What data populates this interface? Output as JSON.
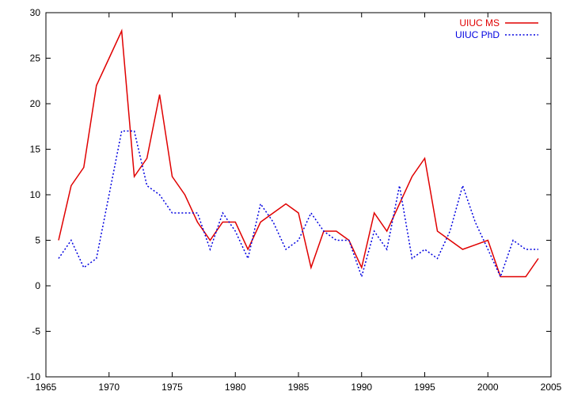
{
  "chart_data": {
    "type": "line",
    "title": "",
    "xlabel": "",
    "ylabel": "",
    "xlim": [
      1965,
      2005
    ],
    "ylim": [
      -10,
      30
    ],
    "xticks": [
      1965,
      1970,
      1975,
      1980,
      1985,
      1990,
      1995,
      2000,
      2005
    ],
    "yticks": [
      -10,
      -5,
      0,
      5,
      10,
      15,
      20,
      25,
      30
    ],
    "grid": false,
    "legend_position": "top-right",
    "x": [
      1966,
      1967,
      1968,
      1969,
      1970,
      1971,
      1972,
      1973,
      1974,
      1975,
      1976,
      1977,
      1978,
      1979,
      1980,
      1981,
      1982,
      1983,
      1984,
      1985,
      1986,
      1987,
      1988,
      1989,
      1990,
      1991,
      1992,
      1993,
      1994,
      1995,
      1996,
      1997,
      1998,
      1999,
      2000,
      2001,
      2002,
      2003,
      2004
    ],
    "series": [
      {
        "name": "UIUC MS",
        "color": "#e00000",
        "dash": "solid",
        "values": [
          5,
          11,
          13,
          22,
          25,
          28,
          12,
          14,
          21,
          12,
          10,
          7,
          5,
          7,
          7,
          4,
          7,
          8,
          9,
          8,
          2,
          6,
          6,
          5,
          2,
          8,
          6,
          9,
          12,
          14,
          6,
          5,
          4,
          4.5,
          5,
          1,
          1,
          1,
          3
        ]
      },
      {
        "name": "UIUC PhD",
        "color": "#0000e0",
        "dash": "dotted",
        "values": [
          3,
          5,
          2,
          3,
          10,
          17,
          17,
          11,
          10,
          8,
          8,
          8,
          4,
          8,
          6,
          3,
          9,
          7,
          4,
          5,
          8,
          6,
          5,
          5,
          1,
          6,
          4,
          11,
          3,
          4,
          3,
          6,
          11,
          7,
          4,
          1,
          5,
          4,
          4
        ]
      }
    ]
  }
}
